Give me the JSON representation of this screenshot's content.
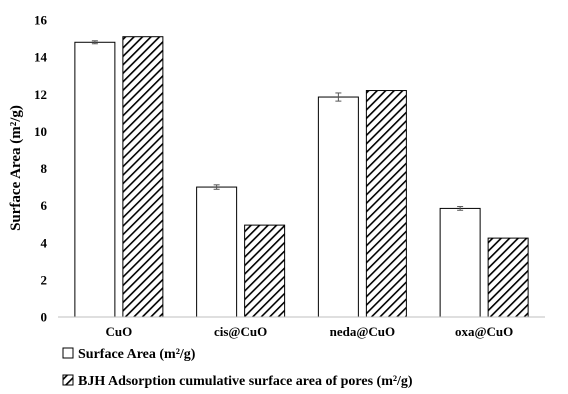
{
  "chart_data": {
    "type": "bar",
    "categories": [
      "CuO",
      "cis@CuO",
      "neda@CuO",
      "oxa@CuO"
    ],
    "series": [
      {
        "name": "Surface Area (m²/g)",
        "values": [
          14.8,
          7.0,
          11.85,
          5.85
        ],
        "errors": [
          0.08,
          0.12,
          0.22,
          0.1
        ],
        "fill": "white"
      },
      {
        "name": "BJH Adsorption cumulative surface area of pores (m²/g)",
        "values": [
          15.1,
          4.95,
          12.2,
          4.25
        ],
        "fill": "diagonal-hatch"
      }
    ],
    "ylabel": "Surface Area (m²/g)",
    "xlabel": "",
    "ylim": [
      0,
      16
    ],
    "yticks": [
      0,
      2,
      4,
      6,
      8,
      10,
      12,
      14,
      16
    ],
    "grid": false,
    "legend_position": "bottom-left"
  }
}
